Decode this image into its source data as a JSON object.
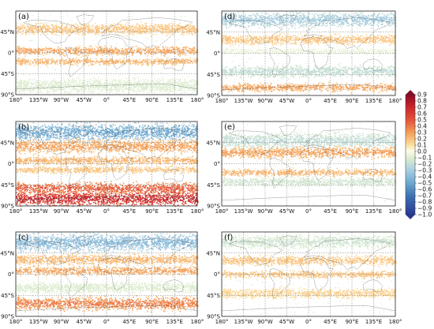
{
  "panels": [
    {
      "id": "a",
      "label": "(a)",
      "bands": [
        {
          "lat": 52,
          "val": 0.2,
          "half": 8
        },
        {
          "lat": 5,
          "val": 0.3,
          "half": 6
        },
        {
          "lat": -18,
          "val": 0.25,
          "half": 5
        },
        {
          "lat": -70,
          "val": -0.1,
          "half": 10
        }
      ]
    },
    {
      "id": "b",
      "label": "(b)",
      "bands": [
        {
          "lat": 68,
          "val": -0.5,
          "half": 12
        },
        {
          "lat": 38,
          "val": 0.3,
          "half": 9
        },
        {
          "lat": 8,
          "val": 0.25,
          "half": 6
        },
        {
          "lat": -12,
          "val": 0.2,
          "half": 5
        },
        {
          "lat": -52,
          "val": 0.5,
          "half": 8
        },
        {
          "lat": -74,
          "val": 0.7,
          "half": 10
        }
      ]
    },
    {
      "id": "c",
      "label": "(c)",
      "bands": [
        {
          "lat": 68,
          "val": -0.4,
          "half": 12
        },
        {
          "lat": 32,
          "val": 0.25,
          "half": 7
        },
        {
          "lat": 8,
          "val": 0.3,
          "half": 6
        },
        {
          "lat": -28,
          "val": -0.1,
          "half": 8
        },
        {
          "lat": -62,
          "val": 0.4,
          "half": 9
        }
      ]
    },
    {
      "id": "d",
      "label": "(d)",
      "bands": [
        {
          "lat": 72,
          "val": -0.3,
          "half": 10
        },
        {
          "lat": 30,
          "val": 0.2,
          "half": 7
        },
        {
          "lat": 5,
          "val": -0.05,
          "half": 4
        },
        {
          "lat": -38,
          "val": -0.2,
          "half": 8
        },
        {
          "lat": -72,
          "val": 0.3,
          "half": 6
        }
      ]
    },
    {
      "id": "e",
      "label": "(e)",
      "bands": [
        {
          "lat": 50,
          "val": -0.2,
          "half": 10
        },
        {
          "lat": 25,
          "val": 0.3,
          "half": 8
        },
        {
          "lat": -18,
          "val": 0.25,
          "half": 5
        },
        {
          "lat": -38,
          "val": -0.15,
          "half": 6
        }
      ]
    },
    {
      "id": "f",
      "label": "(f)",
      "bands": [
        {
          "lat": 70,
          "val": -0.15,
          "half": 9
        },
        {
          "lat": 30,
          "val": 0.2,
          "half": 7
        },
        {
          "lat": 0,
          "val": 0.2,
          "half": 5
        },
        {
          "lat": -40,
          "val": 0.15,
          "half": 7
        }
      ]
    }
  ],
  "lat_ticks": [
    "45°N",
    "0°",
    "45°S",
    "90°S"
  ],
  "lon_ticks": [
    "180°",
    "135°W",
    "90°W",
    "45°W",
    "0°",
    "45°E",
    "90°E",
    "135°E",
    "180°"
  ],
  "colorbar": {
    "min": -1.0,
    "max": 0.9,
    "ticks": [
      "0.9",
      "0.8",
      "0.7",
      "0.6",
      "0.5",
      "0.4",
      "0.3",
      "0.2",
      "0.1",
      "0.0",
      "−0.1",
      "−0.2",
      "−0.3",
      "−0.4",
      "−0.5",
      "−0.6",
      "−0.7",
      "−0.8",
      "−0.9",
      "−1.0"
    ],
    "colors": {
      "0.9": "#8b0a26",
      "0.7": "#c8242b",
      "0.5": "#e5533a",
      "0.3": "#f5a15a",
      "0.1": "#fde0a2",
      "0.0": "#fbfbe8",
      "-0.1": "#dceccf",
      "-0.3": "#a8cde3",
      "-0.5": "#6aa6cf",
      "-0.7": "#3e74b3",
      "-1.0": "#2a3893"
    }
  }
}
